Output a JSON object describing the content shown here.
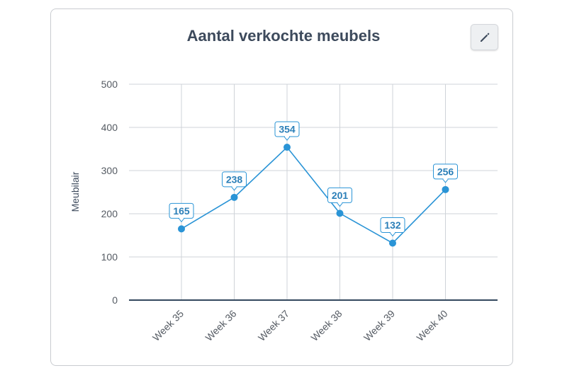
{
  "title": "Aantal verkochte meubels",
  "edit_button": {
    "icon": "pencil-icon"
  },
  "colors": {
    "line": "#2a94d6",
    "point": "#2a94d6",
    "grid": "#cfd3d8",
    "axis": "#33485e",
    "label_border": "#2a94d6",
    "title": "#3d4a5c"
  },
  "chart_data": {
    "type": "line",
    "title": "Aantal verkochte meubels",
    "xlabel": "",
    "ylabel": "Meubilair",
    "categories": [
      "Week 35",
      "Week 36",
      "Week 37",
      "Week 38",
      "Week 39",
      "Week 40"
    ],
    "series": [
      {
        "values": [
          165,
          238,
          354,
          201,
          132,
          256
        ]
      }
    ],
    "ylim": [
      0,
      500
    ],
    "yticks": [
      0,
      100,
      200,
      300,
      400,
      500
    ],
    "grid": true,
    "data_labels": true
  }
}
